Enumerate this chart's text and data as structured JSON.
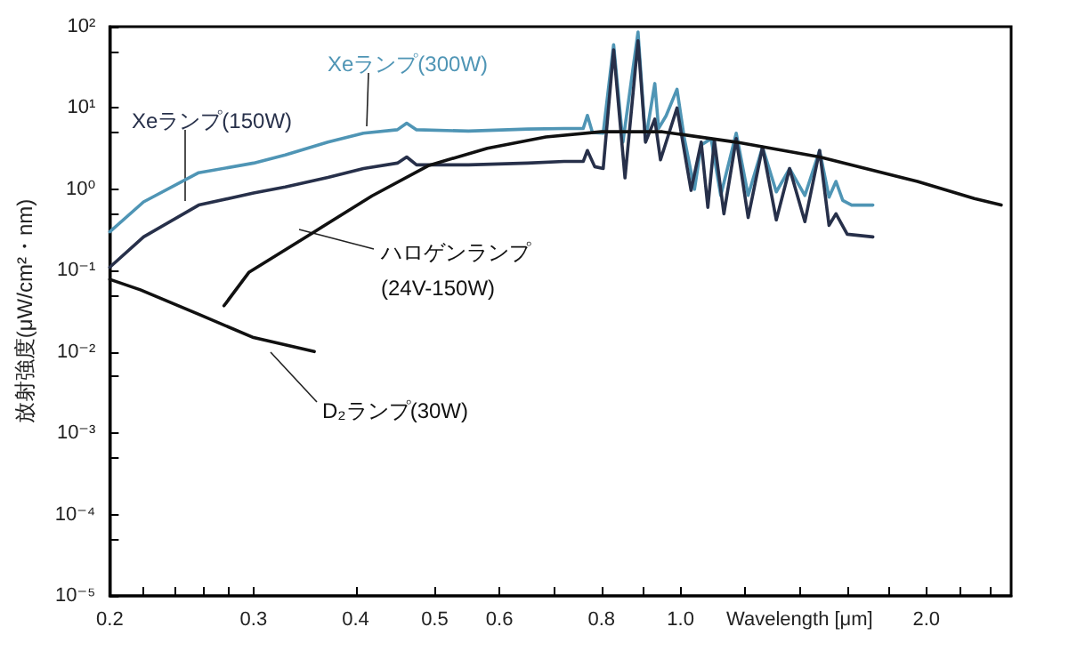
{
  "chart_data": {
    "type": "line",
    "xlabel": "Wavelength [μm]",
    "ylabel": "放射強度(μW/cm²・nm)",
    "log": "xy",
    "xlim": [
      0.2,
      2.54
    ],
    "ylim": [
      1e-05,
      100
    ],
    "xticks": [
      0.2,
      {
        "value": 0.22,
        "label": null
      },
      {
        "value": 0.24,
        "label": null
      },
      {
        "value": 0.26,
        "label": null
      },
      {
        "value": 0.28,
        "label": null
      },
      0.3,
      0.4,
      0.5,
      0.6,
      {
        "value": 0.7,
        "label": null
      },
      0.8,
      {
        "value": 0.9,
        "label": null
      },
      {
        "value": 1,
        "label": "1.0"
      },
      {
        "value": 1.2,
        "label": null
      },
      {
        "value": 1.4,
        "label": null
      },
      {
        "value": 1.6,
        "label": null
      },
      {
        "value": 1.8,
        "label": null
      },
      {
        "value": 2,
        "label": "2.0"
      },
      {
        "value": 2.2,
        "label": null
      },
      {
        "value": 2.4,
        "label": null
      }
    ],
    "yticks": [
      {
        "value": 1e-05,
        "label": "10⁻⁵"
      },
      {
        "value": 5e-05,
        "label": null
      },
      {
        "value": 0.0001,
        "label": "10⁻⁴"
      },
      {
        "value": 0.0005,
        "label": null
      },
      {
        "value": 0.001,
        "label": "10⁻³"
      },
      {
        "value": 0.005,
        "label": null
      },
      {
        "value": 0.01,
        "label": "10⁻²"
      },
      {
        "value": 0.05,
        "label": null
      },
      {
        "value": 0.1,
        "label": "10⁻¹"
      },
      {
        "value": 0.5,
        "label": null
      },
      {
        "value": 1,
        "label": "10⁰"
      },
      {
        "value": 5,
        "label": null
      },
      {
        "value": 10,
        "label": "10¹"
      },
      {
        "value": 50,
        "label": null
      },
      {
        "value": 100,
        "label": "10²"
      }
    ],
    "grid": false,
    "legend": false,
    "marker": "none",
    "line_style": "solid",
    "series": [
      {
        "name": "Xeランプ(300W)",
        "color": "#4f95b5",
        "x": [
          0.2,
          0.22,
          0.257,
          0.3,
          0.328,
          0.37,
          0.409,
          0.45,
          0.462,
          0.475,
          0.55,
          0.65,
          0.72,
          0.76,
          0.769,
          0.78,
          0.804,
          0.828,
          0.85,
          0.887,
          0.906,
          0.93,
          0.94,
          0.96,
          0.99,
          1.01,
          1.04,
          1.06,
          1.09,
          1.12,
          1.17,
          1.21,
          1.26,
          1.31,
          1.36,
          1.42,
          1.48,
          1.52,
          1.55,
          1.58,
          1.62,
          1.72
        ],
        "values": [
          0.3,
          0.7,
          1.6,
          2.1,
          2.65,
          3.8,
          4.9,
          5.4,
          6.5,
          5.4,
          5.2,
          5.5,
          5.6,
          5.6,
          8.1,
          5,
          4.9,
          60,
          3.8,
          86,
          4,
          20,
          5.6,
          8,
          17,
          4.4,
          1,
          3.5,
          4.2,
          0.84,
          4.9,
          0.84,
          3.3,
          0.93,
          1.8,
          0.84,
          3,
          0.8,
          1.25,
          0.73,
          0.64,
          0.64
        ]
      },
      {
        "name": "Xeランプ(150W)",
        "color": "#27304a",
        "x": [
          0.2,
          0.22,
          0.257,
          0.3,
          0.328,
          0.37,
          0.409,
          0.45,
          0.462,
          0.475,
          0.55,
          0.65,
          0.72,
          0.76,
          0.769,
          0.785,
          0.804,
          0.828,
          0.855,
          0.887,
          0.906,
          0.93,
          0.945,
          0.99,
          1.03,
          1.06,
          1.08,
          1.1,
          1.13,
          1.17,
          1.21,
          1.26,
          1.31,
          1.36,
          1.42,
          1.48,
          1.52,
          1.55,
          1.6,
          1.72
        ],
        "values": [
          0.11,
          0.26,
          0.64,
          0.9,
          1.07,
          1.4,
          1.8,
          2.1,
          2.5,
          2,
          2,
          2.1,
          2.2,
          2.2,
          3,
          1.9,
          1.8,
          52,
          1.38,
          67,
          3.8,
          7.3,
          2.3,
          10,
          0.97,
          3.8,
          0.6,
          4,
          0.5,
          4.2,
          0.45,
          3.3,
          0.42,
          1.8,
          0.4,
          3,
          0.36,
          0.5,
          0.28,
          0.26
        ]
      },
      {
        "name": "ハロゲンランプ\n(24V-150W)",
        "color": "#111111",
        "x": [
          0.276,
          0.296,
          0.356,
          0.419,
          0.492,
          0.58,
          0.684,
          0.8,
          0.95,
          1.17,
          1.48,
          1.95,
          2.29,
          2.47
        ],
        "values": [
          0.037,
          0.095,
          0.3,
          0.83,
          1.97,
          3.2,
          4.4,
          5.1,
          5.1,
          3.8,
          2.5,
          1.25,
          0.77,
          0.64
        ]
      },
      {
        "name": "D₂ランプ(30W)",
        "color": "#111111",
        "x": [
          0.2,
          0.218,
          0.257,
          0.3,
          0.356
        ],
        "values": [
          0.078,
          0.058,
          0.029,
          0.015,
          0.0101
        ]
      }
    ]
  }
}
